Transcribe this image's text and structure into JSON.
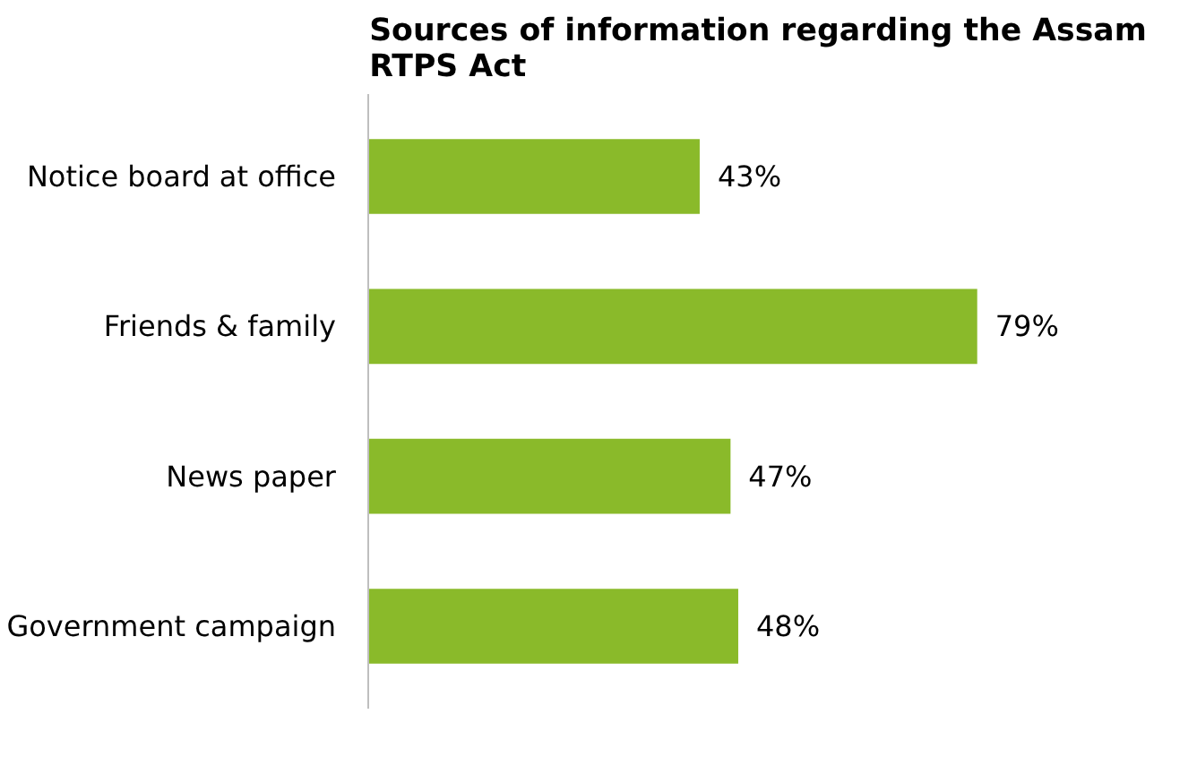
{
  "chart_data": {
    "type": "bar",
    "orientation": "horizontal",
    "title": "Sources of information regarding the Assam RTPS Act",
    "categories": [
      "Notice board at office",
      "Friends & family",
      "News paper",
      "Government campaign"
    ],
    "values": [
      43,
      79,
      47,
      48
    ],
    "color": "#8aba2a",
    "data_labels": true,
    "value_labels": [
      "43%",
      "79%",
      "47%",
      "48%"
    ]
  }
}
